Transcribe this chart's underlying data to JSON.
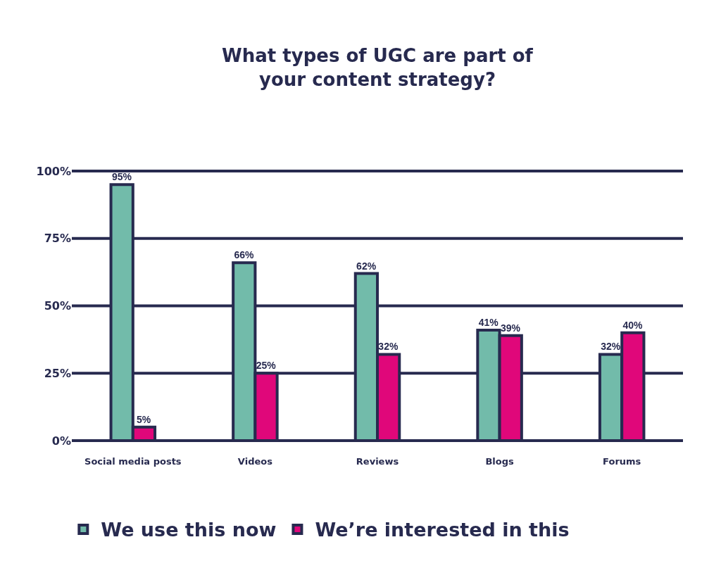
{
  "chart_data": {
    "type": "bar",
    "title": "What types of UGC are part of\nyour content strategy?",
    "categories": [
      "Social media posts",
      "Videos",
      "Reviews",
      "Blogs",
      "Forums"
    ],
    "series": [
      {
        "name": "We use this now",
        "color": "#72bbaa",
        "values": [
          95,
          66,
          62,
          41,
          32
        ],
        "value_labels": [
          "95%",
          "66%",
          "62%",
          "41%",
          "32%"
        ]
      },
      {
        "name": "We’re interested in this",
        "color": "#e0077a",
        "values": [
          5,
          25,
          32,
          39,
          40
        ],
        "value_labels": [
          "5%",
          "25%",
          "32%",
          "39%",
          "40%"
        ]
      }
    ],
    "ylim": [
      0,
      100
    ],
    "yticks": [
      {
        "value": 0,
        "label": "0%"
      },
      {
        "value": 25,
        "label": "25%"
      },
      {
        "value": 50,
        "label": "50%"
      },
      {
        "value": 75,
        "label": "75%"
      },
      {
        "value": 100,
        "label": "100%"
      }
    ],
    "grid": "y",
    "legend": "bottom"
  }
}
